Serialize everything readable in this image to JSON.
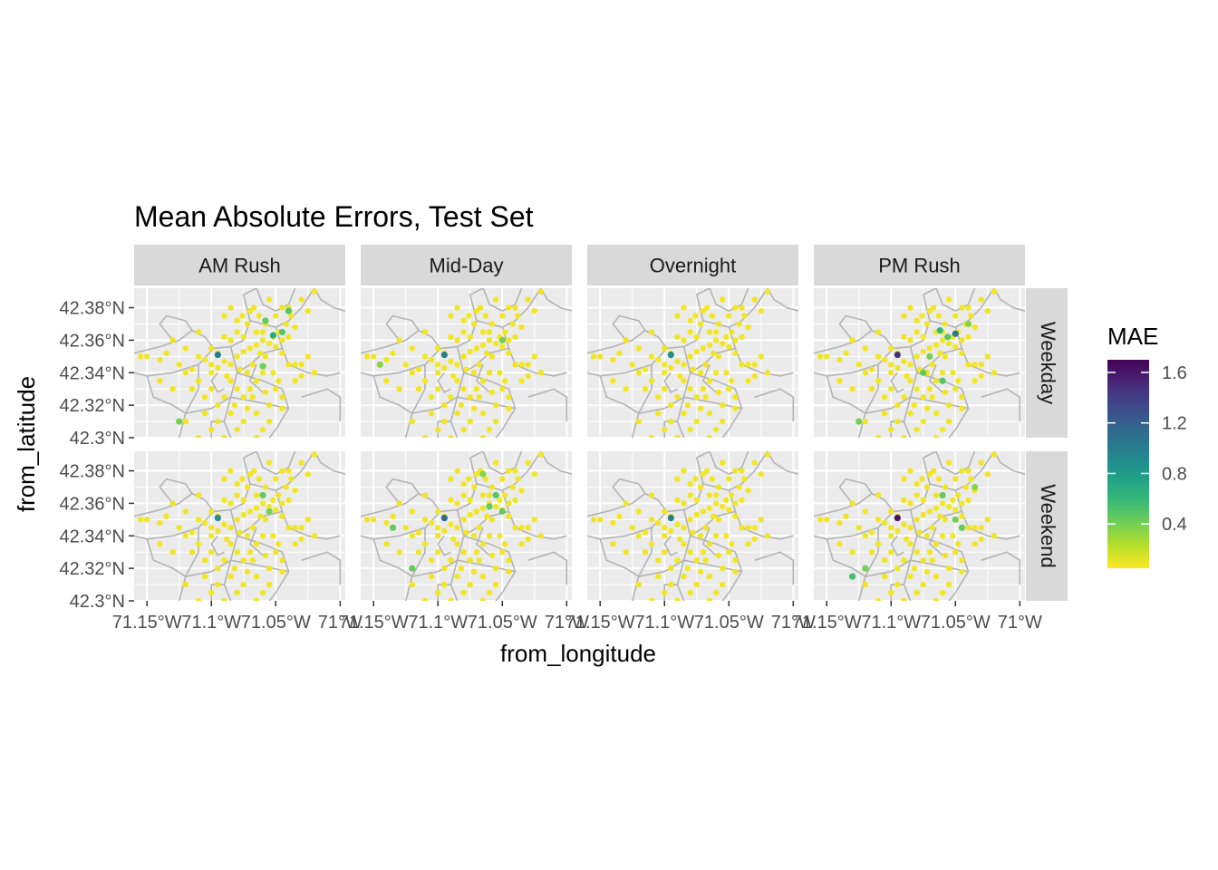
{
  "chart_data": {
    "type": "scatter",
    "title": "Mean Absolute Errors, Test Set",
    "xlabel": "from_longitude",
    "ylabel": "from_latitude",
    "xlim": [
      -71.16,
      -70.996
    ],
    "ylim": [
      42.3,
      42.392
    ],
    "x_ticks": [
      -71.15,
      -71.1,
      -71.05,
      -71.0
    ],
    "x_tick_labels": [
      "71.15°W",
      "71.1°W",
      "71.05°W",
      "71°W"
    ],
    "y_ticks": [
      42.3,
      42.32,
      42.34,
      42.36,
      42.38
    ],
    "y_tick_labels": [
      "42.3°N",
      "42.32°N",
      "42.34°N",
      "42.36°N",
      "42.38°N"
    ],
    "facet_cols": [
      "AM Rush",
      "Mid-Day",
      "Overnight",
      "PM Rush"
    ],
    "facet_rows": [
      "Weekday",
      "Weekend"
    ],
    "legend": {
      "title": "MAE",
      "placement": "right",
      "range": [
        0.05,
        1.7
      ],
      "ticks": [
        0.4,
        0.8,
        1.2,
        1.6
      ],
      "tick_labels": [
        "0.4",
        "0.8",
        "1.2",
        "1.6"
      ],
      "colors": [
        "#fde725",
        "#5ec962",
        "#21918c",
        "#3b528b",
        "#440154"
      ]
    },
    "stations": [
      [
        -71.12,
        42.355
      ],
      [
        -71.135,
        42.352
      ],
      [
        -71.14,
        42.348
      ],
      [
        -71.15,
        42.35
      ],
      [
        -71.155,
        42.35
      ],
      [
        -71.13,
        42.36
      ],
      [
        -71.11,
        42.365
      ],
      [
        -71.1,
        42.345
      ],
      [
        -71.095,
        42.343
      ],
      [
        -71.09,
        42.347
      ],
      [
        -71.085,
        42.345
      ],
      [
        -71.08,
        42.35
      ],
      [
        -71.075,
        42.353
      ],
      [
        -71.07,
        42.355
      ],
      [
        -71.065,
        42.357
      ],
      [
        -71.06,
        42.36
      ],
      [
        -71.055,
        42.358
      ],
      [
        -71.05,
        42.356
      ],
      [
        -71.045,
        42.352
      ],
      [
        -71.06,
        42.365
      ],
      [
        -71.058,
        42.37
      ],
      [
        -71.063,
        42.375
      ],
      [
        -71.07,
        42.378
      ],
      [
        -71.067,
        42.38
      ],
      [
        -71.055,
        42.385
      ],
      [
        -71.04,
        42.38
      ],
      [
        -71.03,
        42.385
      ],
      [
        -71.025,
        42.378
      ],
      [
        -71.02,
        42.39
      ],
      [
        -71.035,
        42.368
      ],
      [
        -71.04,
        42.362
      ],
      [
        -71.045,
        42.36
      ],
      [
        -71.052,
        42.34
      ],
      [
        -71.048,
        42.335
      ],
      [
        -71.04,
        42.345
      ],
      [
        -71.035,
        42.345
      ],
      [
        -71.03,
        42.338
      ],
      [
        -71.02,
        42.34
      ],
      [
        -71.06,
        42.34
      ],
      [
        -71.065,
        42.335
      ],
      [
        -71.07,
        42.33
      ],
      [
        -71.075,
        42.325
      ],
      [
        -71.08,
        42.33
      ],
      [
        -71.085,
        42.335
      ],
      [
        -71.09,
        42.325
      ],
      [
        -71.095,
        42.32
      ],
      [
        -71.1,
        42.33
      ],
      [
        -71.105,
        42.325
      ],
      [
        -71.11,
        42.335
      ],
      [
        -71.115,
        42.33
      ],
      [
        -71.105,
        42.315
      ],
      [
        -71.095,
        42.31
      ],
      [
        -71.085,
        42.315
      ],
      [
        -71.075,
        42.31
      ],
      [
        -71.065,
        42.315
      ],
      [
        -71.055,
        42.32
      ],
      [
        -71.045,
        42.318
      ],
      [
        -71.06,
        42.305
      ],
      [
        -71.08,
        42.305
      ],
      [
        -71.1,
        42.305
      ],
      [
        -71.11,
        42.3
      ],
      [
        -71.12,
        42.31
      ],
      [
        -71.115,
        42.342
      ],
      [
        -71.12,
        42.34
      ],
      [
        -71.125,
        42.345
      ],
      [
        -71.072,
        42.34
      ],
      [
        -71.078,
        42.342
      ],
      [
        -71.068,
        42.345
      ],
      [
        -71.058,
        42.35
      ],
      [
        -71.062,
        42.352
      ],
      [
        -71.052,
        42.362
      ],
      [
        -71.048,
        42.365
      ],
      [
        -71.042,
        42.37
      ],
      [
        -71.09,
        42.362
      ],
      [
        -71.085,
        42.36
      ],
      [
        -71.08,
        42.365
      ],
      [
        -71.075,
        42.362
      ],
      [
        -71.1,
        42.355
      ],
      [
        -71.095,
        42.352
      ],
      [
        -71.105,
        42.348
      ],
      [
        -71.11,
        42.35
      ],
      [
        -71.065,
        42.365
      ],
      [
        -71.072,
        42.37
      ],
      [
        -71.076,
        42.375
      ],
      [
        -71.08,
        42.372
      ],
      [
        -71.085,
        42.38
      ],
      [
        -71.09,
        42.375
      ],
      [
        -71.05,
        42.375
      ],
      [
        -71.045,
        42.38
      ],
      [
        -71.038,
        42.375
      ],
      [
        -71.03,
        42.345
      ],
      [
        -71.025,
        42.35
      ],
      [
        -71.035,
        42.335
      ],
      [
        -71.05,
        42.33
      ],
      [
        -71.045,
        42.325
      ],
      [
        -71.055,
        42.31
      ],
      [
        -71.065,
        42.3
      ],
      [
        -71.09,
        42.3
      ],
      [
        -71.1,
        42.34
      ],
      [
        -71.088,
        42.338
      ],
      [
        -71.082,
        42.32
      ],
      [
        -71.072,
        42.318
      ],
      [
        -71.068,
        42.325
      ],
      [
        -71.058,
        42.328
      ],
      [
        -71.14,
        42.335
      ],
      [
        -71.13,
        42.33
      ]
    ],
    "panels": [
      {
        "row": "Weekday",
        "col": "AM Rush",
        "highlights": [
          [
            -71.095,
            42.351,
            1.0
          ],
          [
            -71.052,
            42.363,
            0.7
          ],
          [
            -71.058,
            42.372,
            0.45
          ],
          [
            -71.045,
            42.365,
            0.5
          ],
          [
            -71.04,
            42.378,
            0.5
          ],
          [
            -71.125,
            42.31,
            0.4
          ],
          [
            -71.06,
            42.344,
            0.4
          ]
        ]
      },
      {
        "row": "Weekday",
        "col": "Mid-Day",
        "highlights": [
          [
            -71.095,
            42.351,
            1.0
          ],
          [
            -71.05,
            42.36,
            0.4
          ],
          [
            -71.145,
            42.345,
            0.35
          ]
        ]
      },
      {
        "row": "Weekday",
        "col": "Overnight",
        "highlights": [
          [
            -71.095,
            42.351,
            0.9
          ]
        ]
      },
      {
        "row": "Weekday",
        "col": "PM Rush",
        "highlights": [
          [
            -71.095,
            42.351,
            1.45
          ],
          [
            -71.05,
            42.364,
            1.05
          ],
          [
            -71.062,
            42.366,
            0.6
          ],
          [
            -71.056,
            42.362,
            0.5
          ],
          [
            -71.07,
            42.35,
            0.4
          ],
          [
            -71.075,
            42.34,
            0.45
          ],
          [
            -71.06,
            42.335,
            0.5
          ],
          [
            -71.125,
            42.31,
            0.4
          ],
          [
            -71.04,
            42.37,
            0.35
          ]
        ]
      },
      {
        "row": "Weekend",
        "col": "AM Rush",
        "highlights": [
          [
            -71.095,
            42.351,
            0.9
          ],
          [
            -71.06,
            42.365,
            0.45
          ],
          [
            -71.055,
            42.355,
            0.4
          ]
        ]
      },
      {
        "row": "Weekend",
        "col": "Mid-Day",
        "highlights": [
          [
            -71.095,
            42.351,
            1.15
          ],
          [
            -71.055,
            42.365,
            0.5
          ],
          [
            -71.06,
            42.358,
            0.45
          ],
          [
            -71.05,
            42.355,
            0.45
          ],
          [
            -71.135,
            42.345,
            0.45
          ],
          [
            -71.12,
            42.32,
            0.45
          ],
          [
            -71.065,
            42.378,
            0.35
          ]
        ]
      },
      {
        "row": "Weekend",
        "col": "Overnight",
        "highlights": [
          [
            -71.095,
            42.351,
            1.0
          ]
        ]
      },
      {
        "row": "Weekend",
        "col": "PM Rush",
        "highlights": [
          [
            -71.095,
            42.351,
            1.6
          ],
          [
            -71.06,
            42.365,
            0.45
          ],
          [
            -71.05,
            42.35,
            0.4
          ],
          [
            -71.045,
            42.345,
            0.45
          ],
          [
            -71.12,
            42.32,
            0.4
          ],
          [
            -71.13,
            42.315,
            0.55
          ],
          [
            -71.035,
            42.37,
            0.35
          ]
        ]
      }
    ],
    "base_mae": 0.08
  }
}
